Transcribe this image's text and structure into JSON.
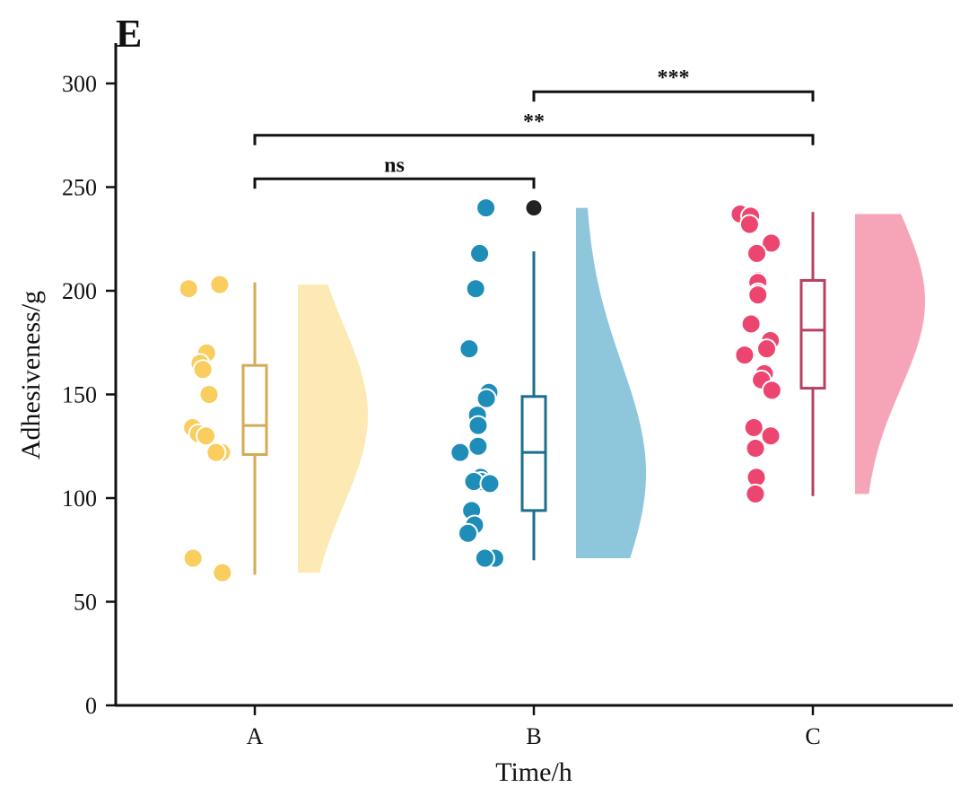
{
  "panel_label": "E",
  "chart_data": {
    "type": "raincloud",
    "xlabel": "Time/h",
    "ylabel": "Adhesiveness/g",
    "ylim": [
      0,
      320
    ],
    "yticks": [
      0,
      50,
      100,
      150,
      200,
      250,
      300
    ],
    "categories": [
      "A",
      "B",
      "C"
    ],
    "grid": false,
    "groups": [
      {
        "name": "A",
        "point_color": "#f9cd5e",
        "box_color": "#d4ab55",
        "violin_color": "#fde9b3",
        "box": {
          "whisker_low": 63,
          "q1": 121,
          "median": 135,
          "q3": 164,
          "whisker_high": 204
        },
        "outliers": [],
        "points": [
          203,
          201,
          170,
          165,
          162,
          150,
          134,
          131,
          130,
          122,
          122,
          71,
          64
        ],
        "violin": {
          "min": 64,
          "max": 203,
          "peak": 140
        }
      },
      {
        "name": "B",
        "point_color": "#1e8db8",
        "box_color": "#1a6f8d",
        "violin_color": "#8ec6db",
        "box": {
          "whisker_low": 70,
          "q1": 94,
          "median": 122,
          "q3": 149,
          "whisker_high": 219
        },
        "outliers": [
          240
        ],
        "points": [
          240,
          218,
          201,
          172,
          151,
          148,
          140,
          135,
          125,
          122,
          110,
          108,
          108,
          107,
          94,
          87,
          83,
          71,
          71
        ],
        "violin": {
          "min": 71,
          "max": 240,
          "peak": 112
        }
      },
      {
        "name": "C",
        "point_color": "#ec4570",
        "box_color": "#b84060",
        "violin_color": "#f6a5b8",
        "box": {
          "whisker_low": 101,
          "q1": 153,
          "median": 181,
          "q3": 205,
          "whisker_high": 238
        },
        "outliers": [],
        "points": [
          237,
          236,
          232,
          223,
          218,
          205,
          204,
          199,
          198,
          184,
          176,
          172,
          169,
          160,
          157,
          152,
          134,
          130,
          124,
          110,
          102
        ],
        "violin": {
          "min": 102,
          "max": 237,
          "peak": 195
        }
      }
    ],
    "significance": [
      {
        "from": "A",
        "to": "B",
        "y": 254,
        "label": "ns"
      },
      {
        "from": "A",
        "to": "C",
        "y": 275,
        "label": "**"
      },
      {
        "from": "B",
        "to": "C",
        "y": 296,
        "label": "***"
      }
    ],
    "outlier_color": "#222222"
  }
}
